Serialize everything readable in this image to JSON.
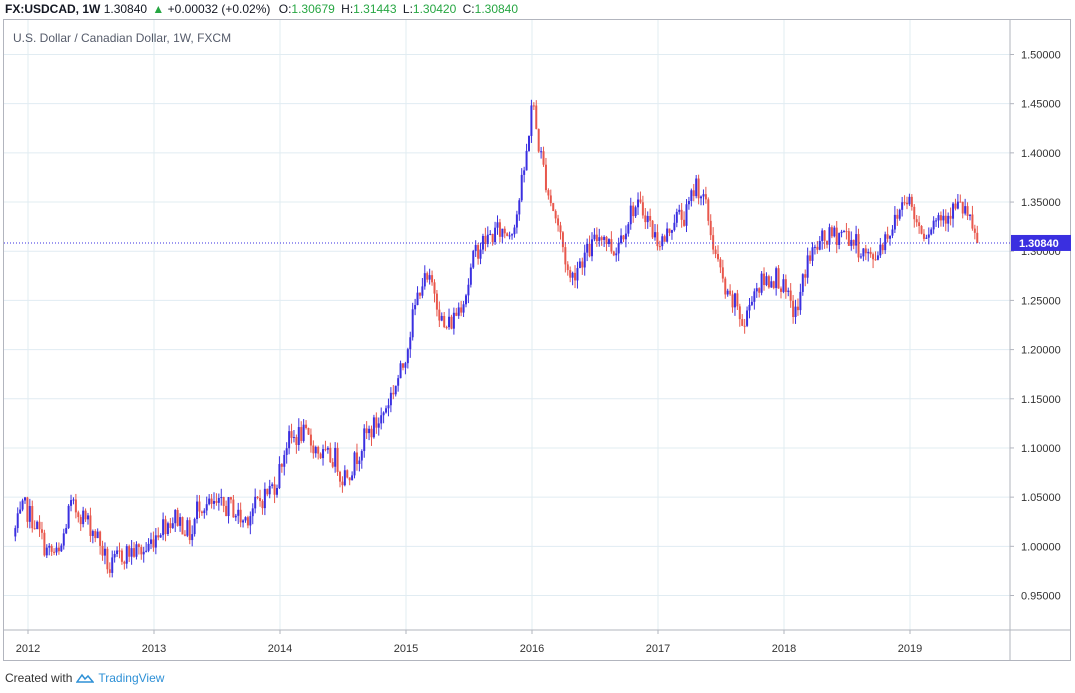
{
  "header": {
    "symbol": "FX:USDCAD, 1W",
    "last": "1.30840",
    "change": "+0.00032 (+0.02%)",
    "open_label": "O:",
    "open": "1.30679",
    "high_label": "H:",
    "high": "1.31443",
    "low_label": "L:",
    "low": "1.30420",
    "close_label": "C:",
    "close": "1.30840"
  },
  "subtitle": "U.S. Dollar / Canadian Dollar, 1W, FXCM",
  "footer": {
    "created_with": "Created with",
    "brand": "TradingView"
  },
  "colors": {
    "up": "#3a2fe0",
    "down": "#e8574c",
    "price_tag": "#3a2fe0",
    "grid": "#e1ecf2"
  },
  "chart_data": {
    "type": "candlestick",
    "title": "U.S. Dollar / Canadian Dollar, 1W, FXCM",
    "xlim": [
      2011.88,
      2019.7
    ],
    "ylim": [
      0.915,
      1.525
    ],
    "y_ticks": [
      "0.95000",
      "1.00000",
      "1.05000",
      "1.10000",
      "1.15000",
      "1.20000",
      "1.25000",
      "1.30000",
      "1.35000",
      "1.40000",
      "1.45000",
      "1.50000"
    ],
    "x_ticks": [
      "2012",
      "2013",
      "2014",
      "2015",
      "2016",
      "2017",
      "2018",
      "2019"
    ],
    "last_price": "1.30840",
    "grid": true,
    "series": [
      {
        "x": [
          2011.88,
          2011.97,
          2012.05,
          2012.15,
          2012.25,
          2012.33,
          2012.41,
          2012.47,
          2012.55,
          2012.65,
          2012.72,
          2012.82,
          2012.93,
          2013.05,
          2013.18,
          2013.3,
          2013.35,
          2013.45,
          2013.55,
          2013.62,
          2013.7,
          2013.83,
          2013.97,
          2014.05,
          2014.17,
          2014.25,
          2014.35,
          2014.45,
          2014.48,
          2014.57,
          2014.67,
          2014.8,
          2014.9,
          2014.97,
          2015.05,
          2015.12,
          2015.22,
          2015.3,
          2015.37,
          2015.48,
          2015.55,
          2015.62,
          2015.72,
          2015.83,
          2015.88,
          2015.95,
          2016.0,
          2016.05,
          2016.13,
          2016.22,
          2016.3,
          2016.38,
          2016.45,
          2016.55,
          2016.65,
          2016.72,
          2016.8,
          2016.9,
          2016.97,
          2017.05,
          2017.13,
          2017.22,
          2017.3,
          2017.37,
          2017.45,
          2017.55,
          2017.63,
          2017.68,
          2017.75,
          2017.85,
          2017.95,
          2018.03,
          2018.1,
          2018.18,
          2018.3,
          2018.38,
          2018.47,
          2018.55,
          2018.62,
          2018.7,
          2018.78,
          2018.88,
          2018.97,
          2019.05,
          2019.12,
          2019.22,
          2019.3,
          2019.38,
          2019.45,
          2019.5,
          2019.55
        ],
        "values": [
          1.01,
          1.04,
          1.025,
          0.995,
          0.99,
          1.04,
          1.035,
          1.025,
          1.01,
          0.975,
          0.99,
          0.995,
          0.995,
          1.02,
          1.03,
          1.01,
          1.045,
          1.04,
          1.04,
          1.04,
          1.025,
          1.045,
          1.065,
          1.105,
          1.115,
          1.105,
          1.09,
          1.09,
          1.07,
          1.08,
          1.11,
          1.13,
          1.16,
          1.18,
          1.23,
          1.27,
          1.265,
          1.22,
          1.23,
          1.26,
          1.3,
          1.31,
          1.32,
          1.32,
          1.34,
          1.39,
          1.455,
          1.41,
          1.36,
          1.32,
          1.27,
          1.29,
          1.3,
          1.32,
          1.3,
          1.32,
          1.345,
          1.34,
          1.315,
          1.31,
          1.335,
          1.335,
          1.37,
          1.35,
          1.3,
          1.25,
          1.245,
          1.22,
          1.26,
          1.27,
          1.275,
          1.25,
          1.235,
          1.29,
          1.31,
          1.315,
          1.32,
          1.31,
          1.3,
          1.29,
          1.31,
          1.33,
          1.36,
          1.33,
          1.32,
          1.335,
          1.34,
          1.345,
          1.34,
          1.315,
          1.3084
        ]
      }
    ]
  }
}
